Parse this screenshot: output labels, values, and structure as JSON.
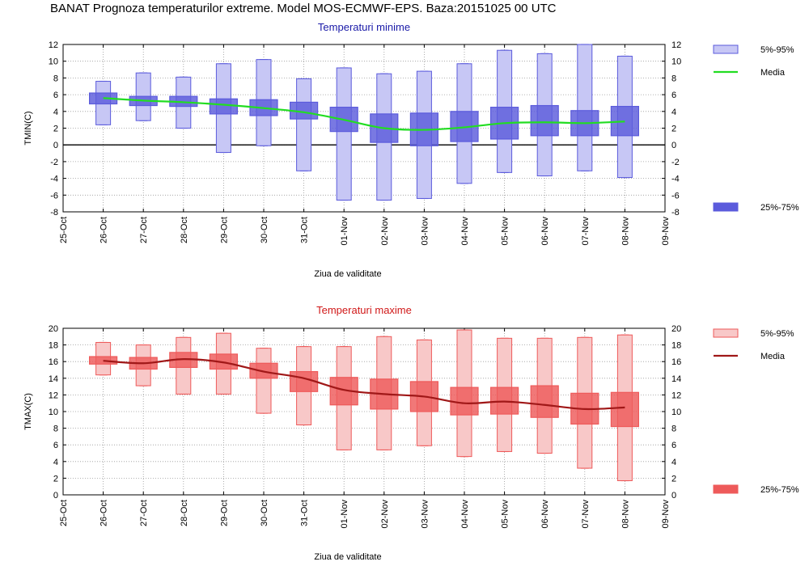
{
  "main_title": "BANAT  Prognoza temperaturilor extreme.  Model MOS-ECMWF-EPS. Baza:20151025 00 UTC",
  "colors": {
    "tmin_box": "#5b5bdc",
    "tmin_box_light": "#c7c7f5",
    "tmin_mean": "#22dd22",
    "tmin_title": "#1a1aa8",
    "tmax_box": "#ee5a5a",
    "tmax_box_light": "#f8c8c8",
    "tmax_mean": "#a01818",
    "tmax_title": "#d01818"
  },
  "chart_data": [
    {
      "type": "box",
      "title": "Temperaturi minime",
      "xlabel": "Ziua de validitate",
      "ylabel": "TMIN(C)",
      "ylim": [
        -8,
        12
      ],
      "yticks": [
        -8,
        -6,
        -4,
        -2,
        0,
        2,
        4,
        6,
        8,
        10,
        12
      ],
      "x_ticks": [
        "25-Oct",
        "26-Oct",
        "27-Oct",
        "28-Oct",
        "29-Oct",
        "30-Oct",
        "31-Oct",
        "01-Nov",
        "02-Nov",
        "03-Nov",
        "04-Nov",
        "05-Nov",
        "06-Nov",
        "07-Nov",
        "08-Nov",
        "09-Nov"
      ],
      "categories": [
        "26-Oct",
        "27-Oct",
        "28-Oct",
        "29-Oct",
        "30-Oct",
        "31-Oct",
        "01-Nov",
        "02-Nov",
        "03-Nov",
        "04-Nov",
        "05-Nov",
        "06-Nov",
        "07-Nov",
        "08-Nov"
      ],
      "p5": [
        2.4,
        2.9,
        2.0,
        -0.9,
        -0.1,
        -3.1,
        -6.6,
        -6.6,
        -6.4,
        -4.6,
        -3.3,
        -3.7,
        -3.1,
        -3.9
      ],
      "p25": [
        4.9,
        4.7,
        4.6,
        3.7,
        3.5,
        3.1,
        1.6,
        0.3,
        -0.1,
        0.4,
        0.7,
        1.1,
        1.1,
        1.1
      ],
      "p75": [
        6.2,
        5.8,
        5.8,
        5.5,
        5.4,
        5.1,
        4.5,
        3.7,
        3.8,
        4.0,
        4.5,
        4.7,
        4.1,
        4.6
      ],
      "p95": [
        7.6,
        8.6,
        8.1,
        9.7,
        10.2,
        7.9,
        9.2,
        8.5,
        8.8,
        9.7,
        11.3,
        10.9,
        12.0,
        10.6
      ],
      "mean": [
        5.6,
        5.3,
        5.1,
        4.8,
        4.4,
        3.9,
        3.0,
        2.0,
        1.8,
        2.1,
        2.6,
        2.7,
        2.6,
        2.8
      ],
      "hline": 0,
      "legend": [
        {
          "label": "5%-95%",
          "kind": "light_box"
        },
        {
          "label": "Media",
          "kind": "line"
        },
        {
          "label": "25%-75%",
          "kind": "dark_box"
        }
      ]
    },
    {
      "type": "box",
      "title": "Temperaturi maxime",
      "xlabel": "Ziua de validitate",
      "ylabel": "TMAX(C)",
      "ylim": [
        0,
        20
      ],
      "yticks": [
        0,
        2,
        4,
        6,
        8,
        10,
        12,
        14,
        16,
        18,
        20
      ],
      "x_ticks": [
        "25-Oct",
        "26-Oct",
        "27-Oct",
        "28-Oct",
        "29-Oct",
        "30-Oct",
        "31-Oct",
        "01-Nov",
        "02-Nov",
        "03-Nov",
        "04-Nov",
        "05-Nov",
        "06-Nov",
        "07-Nov",
        "08-Nov",
        "09-Nov"
      ],
      "categories": [
        "26-Oct",
        "27-Oct",
        "28-Oct",
        "29-Oct",
        "30-Oct",
        "31-Oct",
        "01-Nov",
        "02-Nov",
        "03-Nov",
        "04-Nov",
        "05-Nov",
        "06-Nov",
        "07-Nov",
        "08-Nov"
      ],
      "p5": [
        14.4,
        13.1,
        12.1,
        12.1,
        9.8,
        8.4,
        5.4,
        5.4,
        5.9,
        4.6,
        5.2,
        5.0,
        3.2,
        1.7
      ],
      "p25": [
        15.7,
        15.1,
        15.3,
        15.1,
        14.0,
        12.4,
        10.8,
        10.3,
        10.0,
        9.6,
        9.7,
        9.3,
        8.5,
        8.2
      ],
      "p75": [
        16.6,
        16.5,
        17.1,
        16.9,
        15.8,
        14.8,
        14.1,
        13.9,
        13.6,
        12.9,
        12.9,
        13.1,
        12.2,
        12.3
      ],
      "p95": [
        18.3,
        18.0,
        18.9,
        19.4,
        17.6,
        17.8,
        17.8,
        19.0,
        18.6,
        19.8,
        18.8,
        18.8,
        18.9,
        19.2
      ],
      "mean": [
        16.1,
        15.8,
        16.3,
        15.9,
        14.8,
        14.0,
        12.6,
        12.1,
        11.8,
        11.0,
        11.2,
        10.8,
        10.3,
        10.5
      ],
      "legend": [
        {
          "label": "5%-95%",
          "kind": "light_box"
        },
        {
          "label": "Media",
          "kind": "line"
        },
        {
          "label": "25%-75%",
          "kind": "dark_box"
        }
      ]
    }
  ]
}
